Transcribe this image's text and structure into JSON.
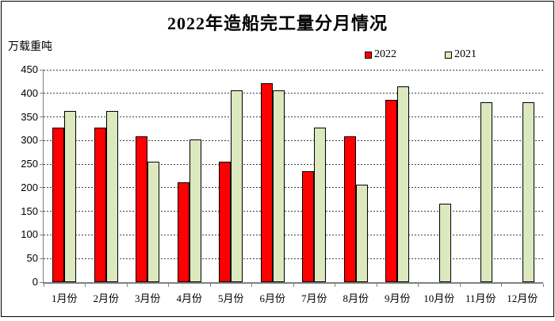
{
  "frame": {
    "background": "#ffffff",
    "border_color": "#000000"
  },
  "chart_data": {
    "type": "bar",
    "title": "2022年造船完工量分月情况",
    "ylabel": "万载重吨",
    "xlabel": "",
    "categories": [
      "1月份",
      "2月份",
      "3月份",
      "4月份",
      "5月份",
      "6月份",
      "7月份",
      "8月份",
      "9月份",
      "10月份",
      "11月份",
      "12月份"
    ],
    "series": [
      {
        "name": "2022",
        "color": "#ff0000",
        "values": [
          327,
          328,
          309,
          211,
          256,
          422,
          235,
          309,
          387,
          null,
          null,
          null
        ]
      },
      {
        "name": "2021",
        "color": "#dce8bd",
        "values": [
          363,
          363,
          256,
          303,
          406,
          406,
          328,
          207,
          414,
          166,
          381,
          381
        ]
      }
    ],
    "ylim": [
      0,
      450
    ],
    "ytick_step": 50,
    "yticks": [
      0,
      50,
      100,
      150,
      200,
      250,
      300,
      350,
      400,
      450
    ],
    "grid": "horizontal-dashed",
    "legend_position": "top-right",
    "bar_outline_color": "#000000",
    "axis_color": "#808080"
  }
}
